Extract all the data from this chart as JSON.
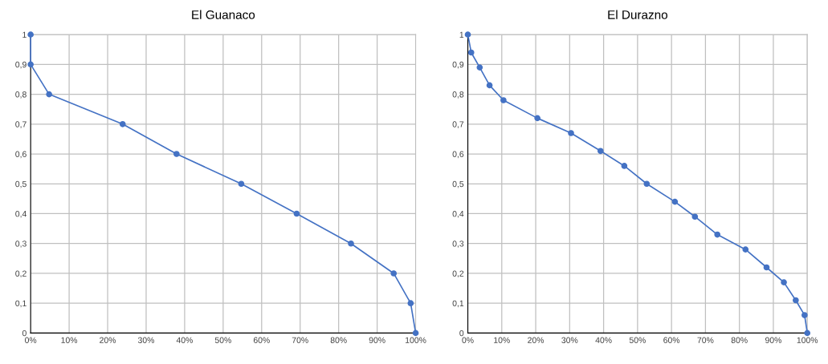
{
  "chart_data": [
    {
      "type": "line",
      "title": "El Guanaco",
      "marker": "circle",
      "grid": true,
      "legend": false,
      "xlim": [
        0,
        100
      ],
      "xticks": [
        {
          "value": 0,
          "label": "0%"
        },
        {
          "value": 10,
          "label": "10%"
        },
        {
          "value": 20,
          "label": "20%"
        },
        {
          "value": 30,
          "label": "30%"
        },
        {
          "value": 40,
          "label": "40%"
        },
        {
          "value": 50,
          "label": "50%"
        },
        {
          "value": 60,
          "label": "60%"
        },
        {
          "value": 70,
          "label": "70%"
        },
        {
          "value": 80,
          "label": "80%"
        },
        {
          "value": 90,
          "label": "90%"
        },
        {
          "value": 100,
          "label": "100%"
        }
      ],
      "ylim": [
        0,
        1
      ],
      "yticks": [
        0,
        {
          "value": 0.1,
          "label": "0,1"
        },
        {
          "value": 0.2,
          "label": "0,2"
        },
        {
          "value": 0.3,
          "label": "0,3"
        },
        {
          "value": 0.4,
          "label": "0,4"
        },
        {
          "value": 0.5,
          "label": "0,5"
        },
        {
          "value": 0.6,
          "label": "0,6"
        },
        {
          "value": 0.7,
          "label": "0,7"
        },
        {
          "value": 0.8,
          "label": "0,8"
        },
        {
          "value": 0.9,
          "label": "0,9"
        },
        1
      ],
      "x": [
        0,
        0,
        4.8,
        23.9,
        37.9,
        54.7,
        69.1,
        83.2,
        94.3,
        98.7,
        100
      ],
      "series": [
        {
          "color": "#4472c4",
          "values": [
            1,
            0.9,
            0.8,
            0.7,
            0.6,
            0.5,
            0.4,
            0.3,
            0.2,
            0.1,
            0
          ]
        }
      ]
    },
    {
      "type": "line",
      "title": "El Durazno",
      "marker": "circle",
      "grid": true,
      "legend": false,
      "xlim": [
        0,
        100
      ],
      "xticks": [
        {
          "value": 0,
          "label": "0%"
        },
        {
          "value": 10,
          "label": "10%"
        },
        {
          "value": 20,
          "label": "20%"
        },
        {
          "value": 30,
          "label": "30%"
        },
        {
          "value": 40,
          "label": "40%"
        },
        {
          "value": 50,
          "label": "50%"
        },
        {
          "value": 60,
          "label": "60%"
        },
        {
          "value": 70,
          "label": "70%"
        },
        {
          "value": 80,
          "label": "80%"
        },
        {
          "value": 90,
          "label": "90%"
        },
        {
          "value": 100,
          "label": "100%"
        }
      ],
      "ylim": [
        0,
        1
      ],
      "yticks": [
        0,
        {
          "value": 0.1,
          "label": "0,1"
        },
        {
          "value": 0.2,
          "label": "0,2"
        },
        {
          "value": 0.3,
          "label": "0,3"
        },
        {
          "value": 0.4,
          "label": "0,4"
        },
        {
          "value": 0.5,
          "label": "0,5"
        },
        {
          "value": 0.6,
          "label": "0,6"
        },
        {
          "value": 0.7,
          "label": "0,7"
        },
        {
          "value": 0.8,
          "label": "0,8"
        },
        {
          "value": 0.9,
          "label": "0,9"
        },
        1
      ],
      "x": [
        0,
        1.0,
        3.5,
        6.4,
        10.5,
        20.5,
        30.4,
        39.1,
        46.1,
        52.7,
        61.0,
        66.9,
        73.5,
        81.8,
        88.0,
        93.1,
        96.6,
        99.2,
        100
      ],
      "series": [
        {
          "color": "#4472c4",
          "values": [
            1,
            0.94,
            0.89,
            0.83,
            0.78,
            0.72,
            0.67,
            0.61,
            0.56,
            0.5,
            0.44,
            0.39,
            0.33,
            0.28,
            0.22,
            0.17,
            0.11,
            0.06,
            0
          ]
        }
      ]
    }
  ]
}
